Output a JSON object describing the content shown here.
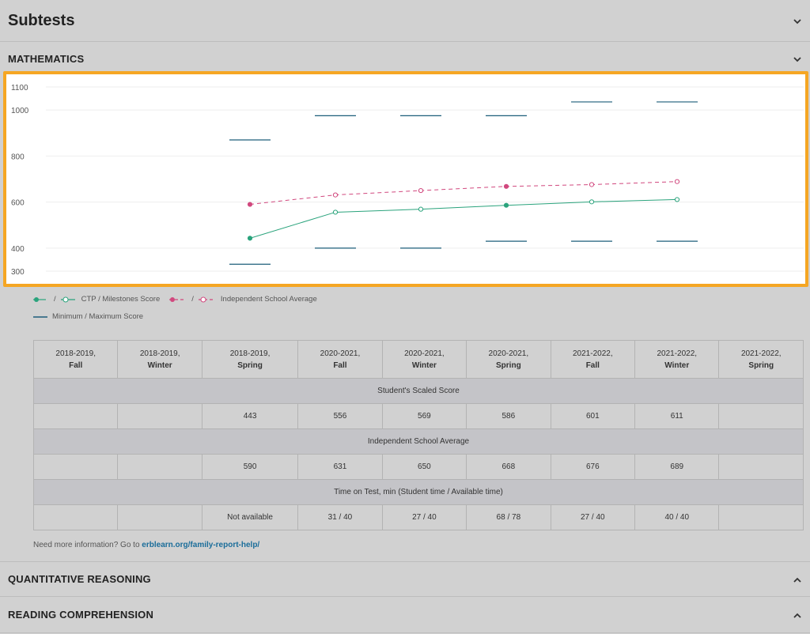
{
  "subtests": {
    "title": "Subtests"
  },
  "math": {
    "title": "MATHEMATICS"
  },
  "legend": {
    "sep": "/",
    "score": "CTP / Milestones Score",
    "average": "Independent School Average",
    "range": "Minimum / Maximum Score"
  },
  "colors": {
    "score": "#2aa37c",
    "average": "#d1487e",
    "range": "#1d5e7a",
    "highlight": "#f5a623"
  },
  "chart_data": {
    "type": "line",
    "y_ticks": [
      "1100",
      "1000",
      "800",
      "600",
      "400",
      "300"
    ],
    "ylim": [
      300,
      1100
    ],
    "series": [
      {
        "name": "CTP / Milestones Score",
        "points": [
          {
            "i": 2,
            "y": 443,
            "filled": true
          },
          {
            "i": 3,
            "y": 556,
            "filled": false
          },
          {
            "i": 4,
            "y": 569,
            "filled": false
          },
          {
            "i": 5,
            "y": 586,
            "filled": true
          },
          {
            "i": 6,
            "y": 601,
            "filled": false
          },
          {
            "i": 7,
            "y": 611,
            "filled": false
          }
        ]
      },
      {
        "name": "Independent School Average",
        "points": [
          {
            "i": 2,
            "y": 590,
            "filled": true
          },
          {
            "i": 3,
            "y": 631,
            "filled": false
          },
          {
            "i": 4,
            "y": 650,
            "filled": false
          },
          {
            "i": 5,
            "y": 668,
            "filled": true
          },
          {
            "i": 6,
            "y": 676,
            "filled": false
          },
          {
            "i": 7,
            "y": 689,
            "filled": false
          }
        ]
      }
    ],
    "ranges": [
      {
        "i": 2,
        "min": 330,
        "max": 870
      },
      {
        "i": 3,
        "min": 400,
        "max": 975
      },
      {
        "i": 4,
        "min": 400,
        "max": 975
      },
      {
        "i": 5,
        "min": 430,
        "max": 975
      },
      {
        "i": 6,
        "min": 430,
        "max": 1035
      },
      {
        "i": 7,
        "min": 430,
        "max": 1035
      }
    ]
  },
  "table": {
    "columns": [
      {
        "year": "2018-2019,",
        "term": "Fall"
      },
      {
        "year": "2018-2019,",
        "term": "Winter"
      },
      {
        "year": "2018-2019,",
        "term": "Spring"
      },
      {
        "year": "2020-2021,",
        "term": "Fall"
      },
      {
        "year": "2020-2021,",
        "term": "Winter"
      },
      {
        "year": "2020-2021,",
        "term": "Spring"
      },
      {
        "year": "2021-2022,",
        "term": "Fall"
      },
      {
        "year": "2021-2022,",
        "term": "Winter"
      },
      {
        "year": "2021-2022,",
        "term": "Spring"
      }
    ],
    "band_score": "Student's Scaled Score",
    "scores": [
      "",
      "",
      "443",
      "556",
      "569",
      "586",
      "601",
      "611",
      ""
    ],
    "band_average": "Independent School Average",
    "averages": [
      "",
      "",
      "590",
      "631",
      "650",
      "668",
      "676",
      "689",
      ""
    ],
    "band_time": "Time on Test, min (Student time / Available time)",
    "times": [
      "",
      "",
      "Not available",
      "31 / 40",
      "27 / 40",
      "68 / 78",
      "27 / 40",
      "40 / 40",
      ""
    ]
  },
  "help": {
    "prefix": "Need more information? Go to ",
    "link": "erblearn.org/family-report-help/"
  },
  "quant": {
    "title": "QUANTITATIVE REASONING"
  },
  "reading": {
    "title": "READING COMPREHENSION"
  }
}
